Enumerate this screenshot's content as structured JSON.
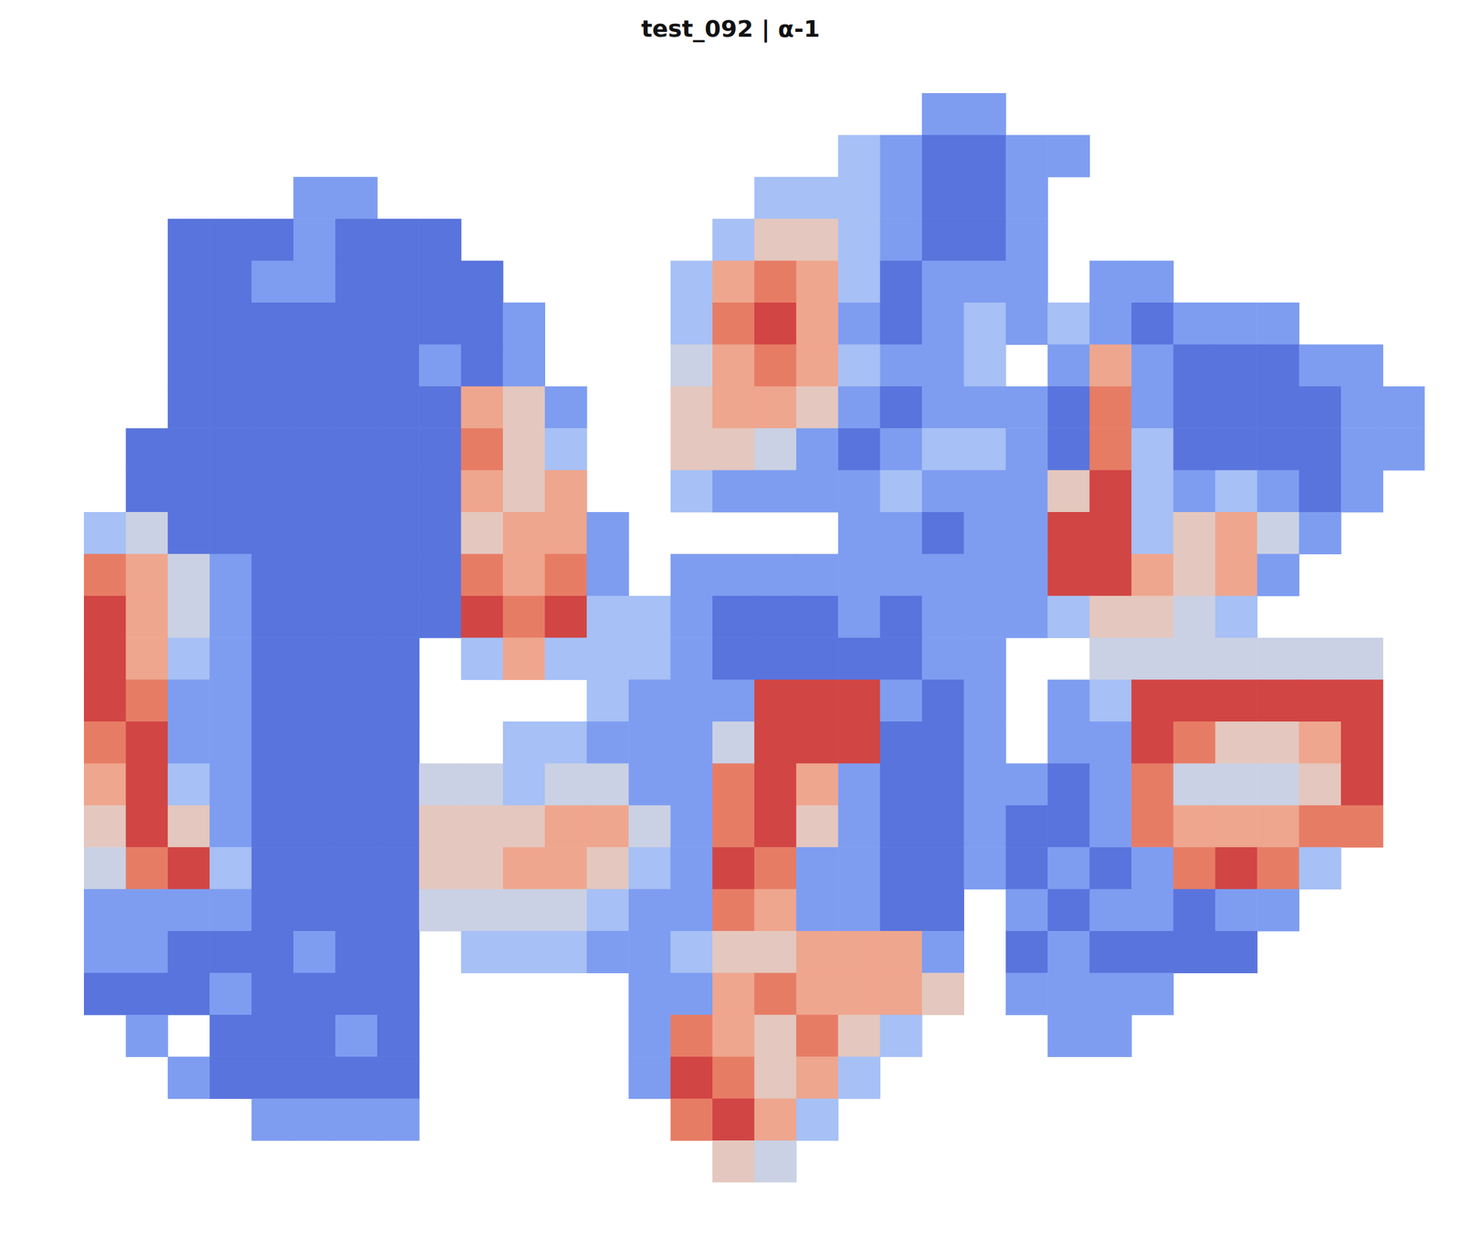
{
  "chart_data": {
    "type": "heatmap",
    "title": "test_092 | α-1",
    "tick_labels": false,
    "zlim": [
      0,
      9
    ],
    "z": [
      [
        null,
        null,
        null,
        null,
        null,
        null,
        null,
        null,
        null,
        null,
        null,
        null,
        null,
        null,
        null,
        null,
        null,
        null,
        null,
        null,
        2,
        2,
        null,
        null,
        null,
        null,
        null,
        null,
        null,
        null,
        null,
        null
      ],
      [
        null,
        null,
        null,
        null,
        null,
        null,
        null,
        null,
        null,
        null,
        null,
        null,
        null,
        null,
        null,
        null,
        null,
        null,
        3,
        2,
        1,
        1,
        2,
        2,
        null,
        null,
        null,
        null,
        null,
        null,
        null,
        null
      ],
      [
        null,
        null,
        null,
        null,
        null,
        2,
        2,
        null,
        null,
        null,
        null,
        null,
        null,
        null,
        null,
        null,
        3,
        3,
        3,
        2,
        1,
        1,
        2,
        null,
        null,
        null,
        null,
        null,
        null,
        null,
        null,
        null
      ],
      [
        null,
        null,
        1,
        1,
        1,
        2,
        1,
        1,
        1,
        null,
        null,
        null,
        null,
        null,
        null,
        3,
        5,
        5,
        3,
        2,
        1,
        1,
        2,
        null,
        null,
        null,
        null,
        null,
        null,
        null,
        null,
        null
      ],
      [
        null,
        null,
        1,
        1,
        2,
        2,
        1,
        1,
        1,
        1,
        null,
        null,
        null,
        null,
        3,
        6,
        7,
        6,
        3,
        1,
        2,
        2,
        2,
        null,
        2,
        2,
        null,
        null,
        null,
        null,
        null,
        null
      ],
      [
        null,
        null,
        1,
        1,
        1,
        1,
        1,
        1,
        1,
        1,
        2,
        null,
        null,
        null,
        3,
        7,
        8,
        6,
        2,
        1,
        2,
        3,
        2,
        3,
        2,
        1,
        2,
        2,
        2,
        null,
        null,
        null
      ],
      [
        null,
        null,
        1,
        1,
        1,
        1,
        1,
        1,
        2,
        1,
        2,
        null,
        null,
        null,
        4,
        6,
        7,
        6,
        3,
        2,
        2,
        3,
        null,
        2,
        6,
        2,
        1,
        1,
        1,
        2,
        2,
        null
      ],
      [
        null,
        null,
        1,
        1,
        1,
        1,
        1,
        1,
        1,
        6,
        5,
        2,
        null,
        null,
        5,
        6,
        6,
        5,
        2,
        1,
        2,
        2,
        2,
        1,
        7,
        2,
        1,
        1,
        1,
        1,
        2,
        2
      ],
      [
        null,
        1,
        1,
        1,
        1,
        1,
        1,
        1,
        1,
        7,
        5,
        3,
        null,
        null,
        5,
        5,
        4,
        2,
        1,
        2,
        3,
        3,
        2,
        1,
        7,
        3,
        1,
        1,
        1,
        1,
        2,
        2
      ],
      [
        null,
        1,
        1,
        1,
        1,
        1,
        1,
        1,
        1,
        6,
        5,
        6,
        null,
        null,
        3,
        2,
        2,
        2,
        2,
        3,
        2,
        2,
        2,
        5,
        8,
        3,
        2,
        3,
        2,
        1,
        2,
        null
      ],
      [
        3,
        4,
        1,
        1,
        1,
        1,
        1,
        1,
        1,
        5,
        6,
        6,
        2,
        null,
        null,
        null,
        null,
        null,
        2,
        2,
        1,
        2,
        2,
        8,
        8,
        3,
        5,
        6,
        4,
        2,
        null,
        null
      ],
      [
        7,
        6,
        4,
        2,
        1,
        1,
        1,
        1,
        1,
        7,
        6,
        7,
        2,
        null,
        2,
        2,
        2,
        2,
        2,
        2,
        2,
        2,
        2,
        8,
        8,
        6,
        5,
        6,
        2,
        null,
        null,
        null
      ],
      [
        8,
        6,
        4,
        2,
        1,
        1,
        1,
        1,
        1,
        8,
        7,
        8,
        3,
        3,
        2,
        1,
        1,
        1,
        2,
        1,
        2,
        2,
        2,
        3,
        5,
        5,
        4,
        3,
        null,
        null,
        null,
        null
      ],
      [
        8,
        6,
        3,
        2,
        1,
        1,
        1,
        1,
        null,
        3,
        6,
        3,
        3,
        3,
        2,
        1,
        1,
        1,
        1,
        1,
        2,
        2,
        null,
        null,
        4,
        4,
        4,
        4,
        4,
        4,
        4,
        null
      ],
      [
        8,
        7,
        2,
        2,
        1,
        1,
        1,
        1,
        null,
        null,
        null,
        null,
        3,
        2,
        2,
        2,
        8,
        8,
        8,
        2,
        1,
        2,
        null,
        2,
        3,
        8,
        8,
        8,
        8,
        8,
        8,
        null
      ],
      [
        7,
        8,
        2,
        2,
        1,
        1,
        1,
        1,
        null,
        null,
        3,
        3,
        2,
        2,
        2,
        4,
        8,
        8,
        8,
        1,
        1,
        2,
        null,
        2,
        2,
        8,
        7,
        5,
        5,
        6,
        8,
        null
      ],
      [
        6,
        8,
        3,
        2,
        1,
        1,
        1,
        1,
        4,
        4,
        3,
        4,
        4,
        2,
        2,
        7,
        8,
        6,
        2,
        1,
        1,
        2,
        2,
        1,
        2,
        7,
        4,
        4,
        4,
        5,
        8,
        null
      ],
      [
        5,
        8,
        5,
        2,
        1,
        1,
        1,
        1,
        5,
        5,
        5,
        6,
        6,
        4,
        2,
        7,
        8,
        5,
        2,
        1,
        1,
        2,
        1,
        1,
        2,
        7,
        6,
        6,
        6,
        7,
        7,
        null
      ],
      [
        4,
        7,
        8,
        3,
        1,
        1,
        1,
        1,
        5,
        5,
        6,
        6,
        5,
        3,
        2,
        8,
        7,
        2,
        2,
        1,
        1,
        2,
        1,
        2,
        1,
        2,
        7,
        8,
        7,
        3,
        null,
        null
      ],
      [
        2,
        2,
        2,
        2,
        1,
        1,
        1,
        1,
        4,
        4,
        4,
        4,
        3,
        2,
        2,
        7,
        6,
        2,
        2,
        1,
        1,
        null,
        2,
        1,
        2,
        2,
        1,
        2,
        2,
        null,
        null,
        null
      ],
      [
        2,
        2,
        1,
        1,
        1,
        2,
        1,
        1,
        null,
        3,
        3,
        3,
        2,
        2,
        3,
        5,
        5,
        6,
        6,
        6,
        2,
        null,
        1,
        2,
        1,
        1,
        1,
        1,
        null,
        null,
        null,
        null
      ],
      [
        1,
        1,
        1,
        2,
        1,
        1,
        1,
        1,
        null,
        null,
        null,
        null,
        null,
        2,
        2,
        6,
        7,
        6,
        6,
        6,
        5,
        null,
        2,
        2,
        2,
        2,
        null,
        null,
        null,
        null,
        null,
        null
      ],
      [
        null,
        2,
        null,
        1,
        1,
        1,
        2,
        1,
        null,
        null,
        null,
        null,
        null,
        2,
        7,
        6,
        5,
        7,
        5,
        3,
        null,
        null,
        null,
        2,
        2,
        null,
        null,
        null,
        null,
        null,
        null,
        null
      ],
      [
        null,
        null,
        2,
        1,
        1,
        1,
        1,
        1,
        null,
        null,
        null,
        null,
        null,
        2,
        8,
        7,
        5,
        6,
        3,
        null,
        null,
        null,
        null,
        null,
        null,
        null,
        null,
        null,
        null,
        null,
        null,
        null
      ],
      [
        null,
        null,
        null,
        null,
        2,
        2,
        2,
        2,
        null,
        null,
        null,
        null,
        null,
        null,
        7,
        8,
        6,
        3,
        null,
        null,
        null,
        null,
        null,
        null,
        null,
        null,
        null,
        null,
        null,
        null,
        null,
        null
      ],
      [
        null,
        null,
        null,
        null,
        null,
        null,
        null,
        null,
        null,
        null,
        null,
        null,
        null,
        null,
        null,
        5,
        4,
        null,
        null,
        null,
        null,
        null,
        null,
        null,
        null,
        null,
        null,
        null,
        null,
        null,
        null,
        null
      ]
    ]
  }
}
